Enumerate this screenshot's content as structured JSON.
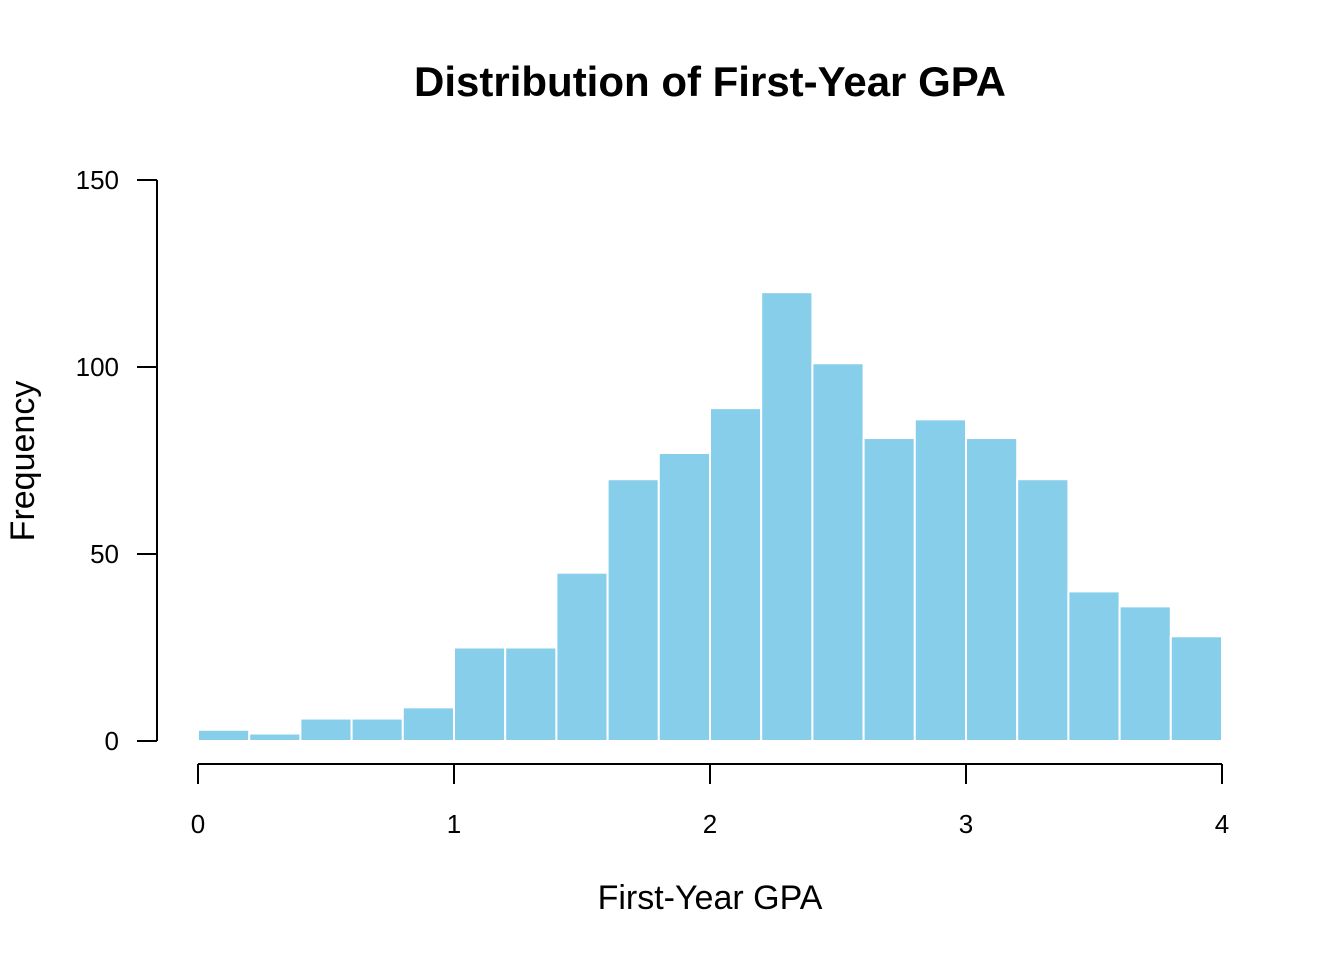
{
  "chart_data": {
    "type": "bar",
    "title": "Distribution of First-Year GPA",
    "xlabel": "First-Year GPA",
    "ylabel": "Frequency",
    "bin_edges": [
      0,
      0.2,
      0.4,
      0.6,
      0.8,
      1.0,
      1.2,
      1.4,
      1.6,
      1.8,
      2.0,
      2.2,
      2.4,
      2.6,
      2.8,
      3.0,
      3.2,
      3.4,
      3.6,
      3.8,
      4.0
    ],
    "values": [
      3,
      2,
      6,
      6,
      9,
      25,
      25,
      45,
      70,
      77,
      89,
      120,
      101,
      81,
      86,
      81,
      70,
      40,
      36,
      28
    ],
    "xlim": [
      0,
      4
    ],
    "ylim": [
      0,
      150
    ],
    "xticks": [
      "0",
      "1",
      "2",
      "3",
      "4"
    ],
    "yticks": [
      "0",
      "50",
      "100",
      "150"
    ],
    "bar_color": "#87CEEB",
    "bar_border_color": "#ffffff",
    "grid": false
  }
}
